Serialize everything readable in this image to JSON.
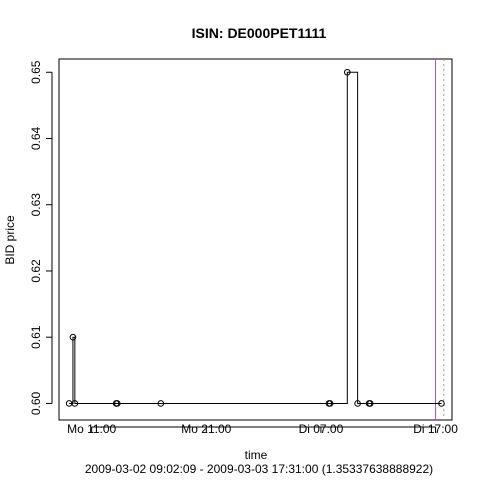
{
  "chart_data": {
    "type": "line",
    "title": "ISIN: DE000PET1111",
    "xlabel": "time",
    "ylabel": "BID price",
    "subtitle": "2009-03-02 09:02:09 - 2009-03-03 17:31:00 (1.35337638888922)",
    "step": true,
    "xlim": [
      "2009-03-02 08:09",
      "2009-03-03 18:26"
    ],
    "ylim": [
      0.5975,
      0.652
    ],
    "x_ticks": [
      {
        "x": "2009-03-02 11:00",
        "label": "Mo 11:00"
      },
      {
        "x": "2009-03-02 21:00",
        "label": "Mo 21:00"
      },
      {
        "x": "2009-03-03 07:00",
        "label": "Di 07:00"
      },
      {
        "x": "2009-03-03 17:00",
        "label": "Di 17:00"
      }
    ],
    "y_ticks": [
      0.6,
      0.61,
      0.62,
      0.63,
      0.64,
      0.65
    ],
    "y_tick_labels": [
      "0.60",
      "0.61",
      "0.62",
      "0.63",
      "0.64",
      "0.65"
    ],
    "points": [
      {
        "x": "2009-03-02 09:02",
        "y": 0.6
      },
      {
        "x": "2009-03-02 09:22",
        "y": 0.61
      },
      {
        "x": "2009-03-02 09:32",
        "y": 0.6
      },
      {
        "x": "2009-03-02 13:08",
        "y": 0.6
      },
      {
        "x": "2009-03-02 13:14",
        "y": 0.6
      },
      {
        "x": "2009-03-02 17:02",
        "y": 0.6
      },
      {
        "x": "2009-03-03 07:42",
        "y": 0.6
      },
      {
        "x": "2009-03-03 07:48",
        "y": 0.6
      },
      {
        "x": "2009-03-03 09:18",
        "y": 0.65
      },
      {
        "x": "2009-03-03 10:12",
        "y": 0.6
      },
      {
        "x": "2009-03-03 11:12",
        "y": 0.6
      },
      {
        "x": "2009-03-03 11:18",
        "y": 0.6
      },
      {
        "x": "2009-03-03 17:31",
        "y": 0.6
      }
    ],
    "markers": {
      "vline_purple": "2009-03-03 17:00",
      "vline_dotted": "2009-03-03 17:43"
    },
    "colors": {
      "line": "#000000",
      "vline_purple": "#a050c8",
      "vline_dotted": "#999999"
    }
  }
}
